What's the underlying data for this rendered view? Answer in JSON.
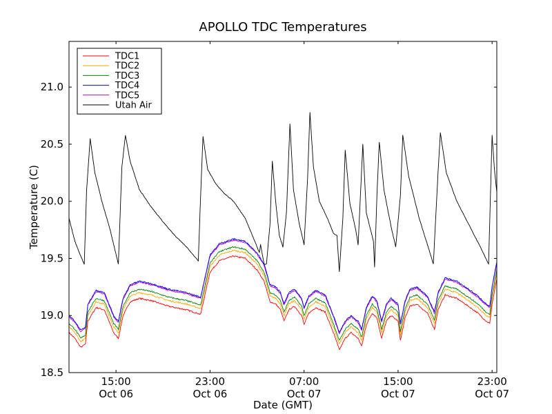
{
  "chart_data": {
    "type": "line",
    "title": "APOLLO TDC Temperatures",
    "xlabel": "Date (GMT)",
    "ylabel": "Temperature (C)",
    "x_unit": "hours since Oct 06 07:00 GMT",
    "xlim": [
      4.0,
      40.4
    ],
    "ylim": [
      18.5,
      21.4
    ],
    "yticks": [
      18.5,
      19.0,
      19.5,
      20.0,
      20.5,
      21.0
    ],
    "ytick_labels": [
      "18.5",
      "19.0",
      "19.5",
      "20.0",
      "20.5",
      "21.0"
    ],
    "xticks": [
      {
        "x": 8,
        "time": "15:00",
        "date": "Oct 06"
      },
      {
        "x": 16,
        "time": "23:00",
        "date": "Oct 06"
      },
      {
        "x": 24,
        "time": "07:00",
        "date": "Oct 07"
      },
      {
        "x": 32,
        "time": "15:00",
        "date": "Oct 07"
      },
      {
        "x": 40,
        "time": "23:00",
        "date": "Oct 07"
      }
    ],
    "legend_position": "top-left",
    "series": [
      {
        "name": "TDC1",
        "color": "#ff0000",
        "offset": 0.0
      },
      {
        "name": "TDC2",
        "color": "#ffa500",
        "offset": 0.05
      },
      {
        "name": "TDC3",
        "color": "#008000",
        "offset": 0.08
      },
      {
        "name": "TDC4",
        "color": "#0000ff",
        "offset": 0.15
      },
      {
        "name": "TDC5",
        "color": "#bf00bf",
        "offset": 0.14
      },
      {
        "name": "Utah Air",
        "color": "#000000",
        "offset": 0.0
      }
    ],
    "tdc1_points": [
      [
        4.0,
        18.85
      ],
      [
        4.5,
        18.8
      ],
      [
        5.0,
        18.72
      ],
      [
        5.4,
        18.75
      ],
      [
        5.6,
        18.95
      ],
      [
        6.3,
        19.07
      ],
      [
        7.0,
        19.05
      ],
      [
        7.8,
        18.85
      ],
      [
        8.2,
        18.8
      ],
      [
        8.6,
        19.0
      ],
      [
        9.2,
        19.12
      ],
      [
        10.0,
        19.15
      ],
      [
        11.0,
        19.13
      ],
      [
        12.5,
        19.08
      ],
      [
        14.0,
        19.05
      ],
      [
        15.2,
        19.01
      ],
      [
        15.5,
        19.15
      ],
      [
        16.0,
        19.38
      ],
      [
        16.8,
        19.48
      ],
      [
        18.0,
        19.52
      ],
      [
        19.0,
        19.5
      ],
      [
        20.0,
        19.4
      ],
      [
        20.6,
        19.3
      ],
      [
        21.1,
        19.12
      ],
      [
        21.6,
        19.1
      ],
      [
        22.0,
        19.05
      ],
      [
        22.3,
        18.95
      ],
      [
        22.7,
        19.05
      ],
      [
        23.2,
        19.08
      ],
      [
        23.8,
        19.0
      ],
      [
        24.0,
        18.92
      ],
      [
        24.4,
        19.02
      ],
      [
        25.0,
        19.07
      ],
      [
        25.8,
        19.03
      ],
      [
        26.5,
        18.85
      ],
      [
        27.0,
        18.7
      ],
      [
        27.5,
        18.8
      ],
      [
        28.0,
        18.85
      ],
      [
        28.6,
        18.8
      ],
      [
        28.9,
        18.73
      ],
      [
        29.3,
        18.92
      ],
      [
        29.8,
        19.02
      ],
      [
        30.2,
        18.98
      ],
      [
        30.6,
        18.8
      ],
      [
        31.0,
        18.95
      ],
      [
        31.4,
        19.0
      ],
      [
        32.0,
        18.95
      ],
      [
        32.2,
        18.78
      ],
      [
        32.6,
        18.98
      ],
      [
        33.0,
        19.08
      ],
      [
        33.6,
        19.1
      ],
      [
        34.5,
        19.02
      ],
      [
        35.1,
        18.88
      ],
      [
        35.4,
        19.05
      ],
      [
        36.0,
        19.18
      ],
      [
        37.0,
        19.15
      ],
      [
        38.0,
        19.08
      ],
      [
        38.8,
        19.02
      ],
      [
        39.5,
        18.95
      ],
      [
        39.8,
        18.93
      ],
      [
        40.0,
        19.1
      ],
      [
        40.4,
        19.32
      ]
    ],
    "utah_air_points": [
      [
        4.0,
        19.85
      ],
      [
        4.5,
        19.65
      ],
      [
        5.0,
        19.52
      ],
      [
        5.3,
        19.45
      ],
      [
        5.5,
        20.1
      ],
      [
        5.8,
        20.55
      ],
      [
        6.2,
        20.25
      ],
      [
        6.8,
        20.0
      ],
      [
        7.5,
        19.75
      ],
      [
        8.2,
        19.45
      ],
      [
        8.5,
        20.3
      ],
      [
        8.8,
        20.58
      ],
      [
        9.2,
        20.35
      ],
      [
        10.0,
        20.1
      ],
      [
        11.0,
        19.95
      ],
      [
        12.0,
        19.82
      ],
      [
        13.0,
        19.7
      ],
      [
        14.0,
        19.6
      ],
      [
        15.0,
        19.48
      ],
      [
        15.2,
        20.05
      ],
      [
        15.4,
        20.57
      ],
      [
        15.8,
        20.28
      ],
      [
        16.5,
        20.15
      ],
      [
        17.2,
        20.07
      ],
      [
        18.0,
        20.0
      ],
      [
        19.0,
        19.85
      ],
      [
        19.8,
        19.65
      ],
      [
        20.2,
        19.55
      ],
      [
        20.3,
        19.62
      ],
      [
        20.6,
        19.45
      ],
      [
        20.8,
        19.45
      ],
      [
        21.1,
        19.8
      ],
      [
        21.3,
        20.35
      ],
      [
        21.6,
        19.98
      ],
      [
        21.9,
        19.7
      ],
      [
        22.2,
        19.6
      ],
      [
        22.5,
        19.9
      ],
      [
        22.8,
        20.68
      ],
      [
        23.1,
        20.1
      ],
      [
        23.6,
        19.8
      ],
      [
        24.0,
        19.62
      ],
      [
        24.3,
        20.2
      ],
      [
        24.5,
        20.78
      ],
      [
        24.8,
        20.3
      ],
      [
        25.3,
        20.0
      ],
      [
        26.0,
        19.85
      ],
      [
        26.5,
        19.72
      ],
      [
        26.8,
        19.7
      ],
      [
        27.0,
        19.38
      ],
      [
        27.3,
        19.85
      ],
      [
        27.5,
        20.45
      ],
      [
        27.9,
        19.98
      ],
      [
        28.4,
        19.75
      ],
      [
        28.6,
        19.62
      ],
      [
        29.0,
        20.5
      ],
      [
        29.3,
        19.9
      ],
      [
        29.9,
        19.65
      ],
      [
        30.0,
        19.42
      ],
      [
        30.2,
        20.05
      ],
      [
        30.4,
        20.52
      ],
      [
        30.8,
        20.1
      ],
      [
        31.4,
        19.78
      ],
      [
        31.8,
        19.6
      ],
      [
        32.2,
        20.05
      ],
      [
        32.4,
        20.58
      ],
      [
        32.9,
        20.22
      ],
      [
        33.8,
        19.85
      ],
      [
        34.5,
        19.62
      ],
      [
        35.0,
        19.45
      ],
      [
        35.4,
        20.25
      ],
      [
        35.6,
        20.6
      ],
      [
        36.1,
        20.25
      ],
      [
        37.0,
        20.0
      ],
      [
        38.0,
        19.8
      ],
      [
        39.0,
        19.6
      ],
      [
        39.7,
        19.45
      ],
      [
        39.9,
        20.2
      ],
      [
        40.0,
        20.58
      ],
      [
        40.2,
        20.28
      ],
      [
        40.4,
        20.08
      ]
    ]
  }
}
